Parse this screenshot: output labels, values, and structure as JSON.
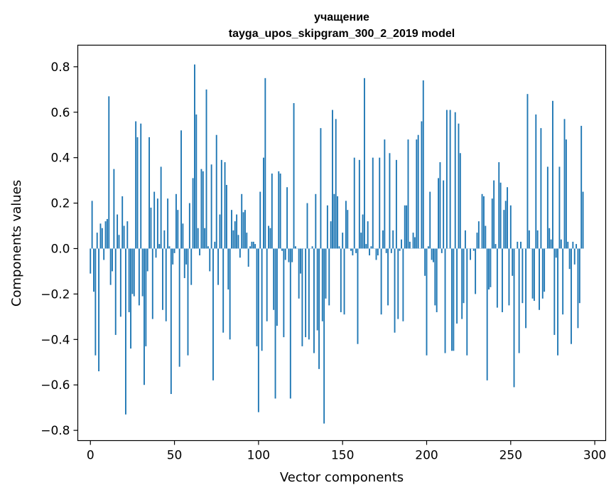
{
  "chart_data": {
    "type": "bar",
    "title": "учащение",
    "subtitle": "tayga_upos_skipgram_300_2_2019 model",
    "xlabel": "Vector components",
    "ylabel": "Components values",
    "xlim": [
      -7.5,
      306.5
    ],
    "ylim": [
      -0.845,
      0.895
    ],
    "xticks": [
      0,
      50,
      100,
      150,
      200,
      250,
      300
    ],
    "yticks": [
      -0.8,
      -0.6,
      -0.4,
      -0.2,
      0.0,
      0.2,
      0.4,
      0.6,
      0.8
    ],
    "ytick_labels": [
      "−0.8",
      "−0.6",
      "−0.4",
      "−0.2",
      "0.0",
      "0.2",
      "0.4",
      "0.6",
      "0.8"
    ],
    "grid": false,
    "bar_color": "#1f77b4",
    "values": [
      -0.11,
      0.21,
      -0.19,
      -0.47,
      0.07,
      -0.54,
      0.11,
      0.09,
      -0.05,
      0.12,
      0.13,
      0.67,
      -0.16,
      -0.1,
      0.35,
      -0.38,
      0.15,
      0.06,
      -0.3,
      0.23,
      0.1,
      -0.73,
      0.12,
      -0.28,
      -0.44,
      -0.2,
      -0.21,
      0.56,
      0.49,
      -0.25,
      0.55,
      -0.21,
      -0.6,
      -0.43,
      -0.1,
      0.49,
      0.18,
      -0.31,
      0.25,
      -0.04,
      0.22,
      0.02,
      0.36,
      -0.27,
      0.08,
      -0.32,
      0.22,
      0.01,
      -0.64,
      -0.07,
      -0.02,
      0.24,
      0.17,
      -0.52,
      0.52,
      0.11,
      -0.13,
      -0.07,
      -0.47,
      0.2,
      -0.16,
      0.31,
      0.81,
      0.59,
      0.09,
      -0.03,
      0.35,
      0.34,
      0.09,
      0.7,
      0.01,
      -0.1,
      0.37,
      -0.58,
      0.03,
      0.5,
      -0.16,
      0.15,
      0.39,
      -0.37,
      0.38,
      0.28,
      -0.18,
      -0.4,
      0.17,
      0.08,
      0.12,
      0.15,
      0.06,
      -0.04,
      0.24,
      0.16,
      0.17,
      0.07,
      -0.08,
      0.01,
      0.03,
      0.03,
      0.02,
      -0.43,
      -0.72,
      0.25,
      -0.45,
      0.4,
      0.75,
      -0.32,
      0.1,
      0.09,
      0.33,
      -0.27,
      -0.66,
      -0.34,
      0.34,
      0.33,
      -0.01,
      -0.39,
      -0.05,
      0.27,
      -0.06,
      -0.66,
      -0.06,
      0.64,
      0.01,
      0.0,
      -0.22,
      -0.11,
      -0.43,
      0.0,
      -0.39,
      0.2,
      -0.4,
      0.0,
      0.01,
      -0.46,
      0.24,
      -0.36,
      -0.53,
      0.53,
      -0.32,
      -0.77,
      -0.22,
      0.19,
      -0.25,
      0.12,
      0.61,
      0.24,
      0.57,
      0.23,
      0.01,
      -0.28,
      0.07,
      -0.29,
      0.21,
      0.17,
      0.0,
      -0.01,
      -0.03,
      0.4,
      -0.02,
      -0.42,
      0.39,
      0.07,
      0.15,
      0.75,
      0.02,
      0.12,
      -0.03,
      0.01,
      0.4,
      0.0,
      -0.05,
      -0.03,
      0.4,
      -0.29,
      0.08,
      0.48,
      -0.02,
      -0.25,
      0.42,
      -0.02,
      0.08,
      -0.37,
      0.39,
      -0.31,
      -0.01,
      0.04,
      -0.32,
      0.19,
      0.19,
      0.48,
      0.03,
      0.0,
      0.07,
      0.05,
      0.48,
      0.5,
      0.0,
      0.56,
      0.74,
      -0.12,
      -0.47,
      0.01,
      0.25,
      -0.05,
      -0.06,
      -0.25,
      -0.28,
      0.31,
      0.38,
      -0.02,
      0.3,
      -0.46,
      0.61,
      0.0,
      0.61,
      -0.45,
      -0.45,
      0.6,
      -0.33,
      0.55,
      0.42,
      -0.31,
      -0.24,
      0.08,
      -0.47,
      0.0,
      -0.05,
      0.0,
      -0.01,
      -0.2,
      0.07,
      0.12,
      0.0,
      0.24,
      0.23,
      0.1,
      -0.58,
      -0.18,
      -0.17,
      0.22,
      0.3,
      0.02,
      -0.26,
      0.38,
      0.29,
      -0.28,
      0.17,
      0.21,
      0.27,
      -0.25,
      0.19,
      -0.12,
      -0.61,
      0.0,
      0.03,
      -0.46,
      0.03,
      -0.24,
      0.0,
      -0.35,
      0.68,
      0.08,
      0.0,
      -0.22,
      -0.23,
      0.59,
      0.08,
      -0.27,
      0.53,
      -0.22,
      -0.19,
      0.0,
      0.36,
      0.09,
      0.04,
      0.65,
      -0.38,
      -0.04,
      -0.47,
      0.36,
      0.04,
      -0.29,
      0.57,
      0.48,
      0.03,
      -0.09,
      -0.42,
      0.03,
      -0.07,
      0.02,
      -0.35,
      -0.24,
      0.54,
      0.25
    ]
  }
}
